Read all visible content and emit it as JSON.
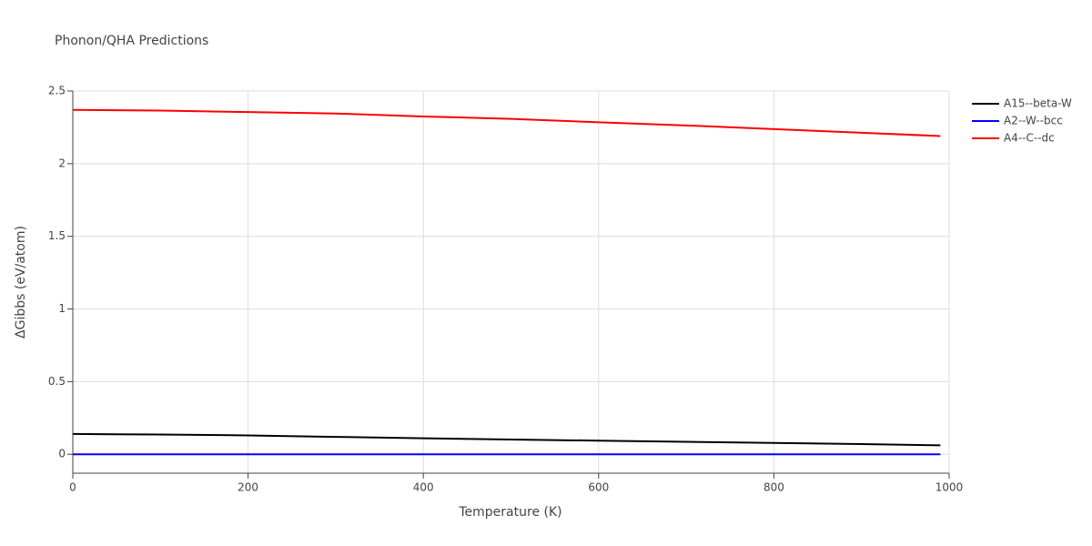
{
  "chart_data": {
    "type": "line",
    "title": "Phonon/QHA Predictions",
    "x_label": "Temperature (K)",
    "y_label": "ΔGibbs (eV/atom)",
    "x": [
      0,
      100,
      200,
      300,
      400,
      500,
      600,
      700,
      800,
      900,
      990
    ],
    "series": [
      {
        "name": "A15--beta-W",
        "color": "#000000",
        "values": [
          0.14,
          0.136,
          0.13,
          0.12,
          0.11,
          0.102,
          0.094,
          0.086,
          0.078,
          0.07,
          0.062
        ]
      },
      {
        "name": "A2--W--bcc",
        "color": "#0000ff",
        "values": [
          0,
          0,
          0,
          0,
          0,
          0,
          0,
          0,
          0,
          0,
          0
        ]
      },
      {
        "name": "A4--C--dc",
        "color": "#ff0000",
        "values": [
          2.37,
          2.365,
          2.355,
          2.345,
          2.325,
          2.308,
          2.285,
          2.263,
          2.238,
          2.213,
          2.19
        ]
      }
    ],
    "xlim": [
      0,
      1000
    ],
    "xticks": [
      0,
      200,
      400,
      600,
      800,
      1000
    ],
    "ylim": [
      -0.13,
      2.5
    ],
    "yticks": [
      0,
      0.5,
      1,
      1.5,
      2,
      2.5
    ],
    "grid": true,
    "legend": "top-right"
  }
}
